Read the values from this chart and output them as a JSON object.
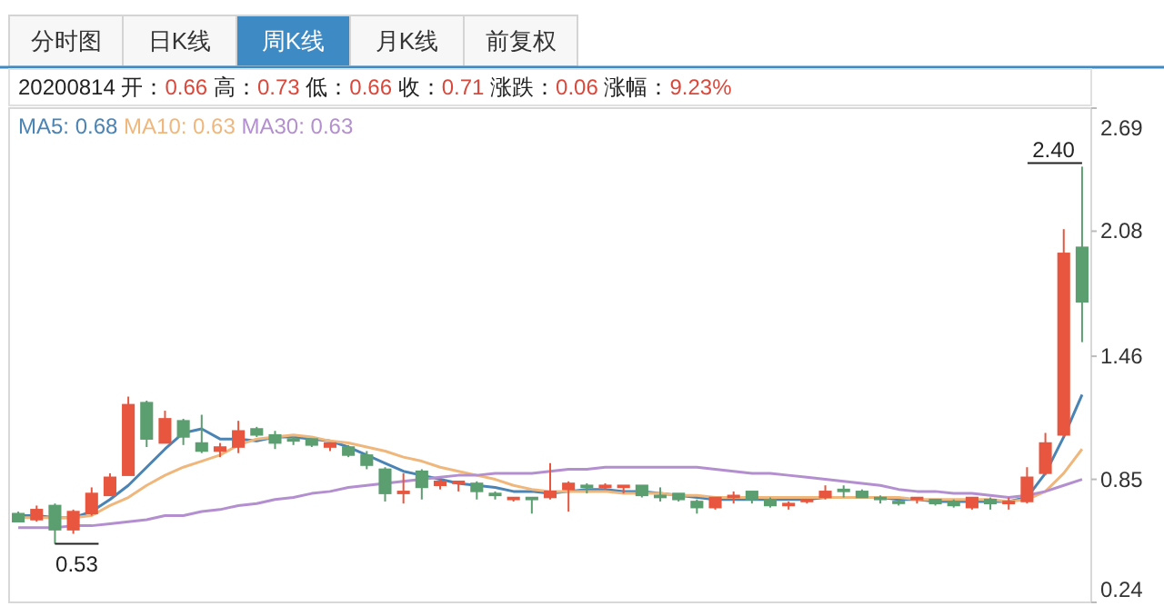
{
  "chart_data": {
    "type": "candlestick",
    "categories": [
      null,
      null,
      null,
      null,
      null,
      null,
      null,
      null,
      null,
      null,
      null,
      null,
      null,
      null,
      null,
      null,
      null,
      null,
      null,
      null,
      null,
      null,
      null,
      null,
      null,
      null,
      null,
      null,
      null,
      null,
      null,
      null,
      null,
      null,
      null,
      null,
      null,
      null,
      null,
      null,
      null,
      null,
      null,
      null,
      null,
      null,
      null,
      null,
      null,
      null,
      null,
      null,
      null,
      null,
      null,
      null,
      null,
      null,
      null
    ],
    "ohlc": [
      [
        0.68,
        0.69,
        0.64,
        0.64
      ],
      [
        0.65,
        0.72,
        0.64,
        0.7
      ],
      [
        0.72,
        0.73,
        0.53,
        0.6
      ],
      [
        0.6,
        0.7,
        0.58,
        0.69
      ],
      [
        0.68,
        0.81,
        0.67,
        0.78
      ],
      [
        0.77,
        0.88,
        0.77,
        0.86
      ],
      [
        0.87,
        1.26,
        0.87,
        1.22
      ],
      [
        1.23,
        1.24,
        1.01,
        1.05
      ],
      [
        1.03,
        1.19,
        1.03,
        1.15
      ],
      [
        1.14,
        1.15,
        1.02,
        1.06
      ],
      [
        1.03,
        1.17,
        0.98,
        0.99
      ],
      [
        0.99,
        1.03,
        0.96,
        1.01
      ],
      [
        1.01,
        1.14,
        0.98,
        1.09
      ],
      [
        1.1,
        1.11,
        1.06,
        1.07
      ],
      [
        1.07,
        1.09,
        1.0,
        1.03
      ],
      [
        1.05,
        1.06,
        1.02,
        1.04
      ],
      [
        1.05,
        1.05,
        1.01,
        1.02
      ],
      [
        1.01,
        1.03,
        0.99,
        1.03
      ],
      [
        1.01,
        1.02,
        0.96,
        0.97
      ],
      [
        0.97,
        0.99,
        0.9,
        0.92
      ],
      [
        0.9,
        0.91,
        0.74,
        0.78
      ],
      [
        0.78,
        0.88,
        0.73,
        0.79
      ],
      [
        0.89,
        0.9,
        0.75,
        0.81
      ],
      [
        0.82,
        0.85,
        0.8,
        0.84
      ],
      [
        0.83,
        0.84,
        0.79,
        0.84
      ],
      [
        0.83,
        0.84,
        0.75,
        0.79
      ],
      [
        0.78,
        0.79,
        0.75,
        0.77
      ],
      [
        0.75,
        0.76,
        0.74,
        0.76
      ],
      [
        0.76,
        0.76,
        0.68,
        0.75
      ],
      [
        0.76,
        0.93,
        0.75,
        0.79
      ],
      [
        0.8,
        0.84,
        0.69,
        0.83
      ],
      [
        0.82,
        0.83,
        0.78,
        0.81
      ],
      [
        0.81,
        0.83,
        0.8,
        0.82
      ],
      [
        0.81,
        0.82,
        0.78,
        0.82
      ],
      [
        0.82,
        0.82,
        0.76,
        0.77
      ],
      [
        0.77,
        0.81,
        0.74,
        0.76
      ],
      [
        0.78,
        0.78,
        0.74,
        0.75
      ],
      [
        0.74,
        0.75,
        0.68,
        0.71
      ],
      [
        0.71,
        0.76,
        0.7,
        0.76
      ],
      [
        0.76,
        0.79,
        0.73,
        0.77
      ],
      [
        0.79,
        0.79,
        0.73,
        0.75
      ],
      [
        0.75,
        0.76,
        0.71,
        0.72
      ],
      [
        0.72,
        0.74,
        0.7,
        0.73
      ],
      [
        0.74,
        0.75,
        0.73,
        0.75
      ],
      [
        0.76,
        0.82,
        0.75,
        0.79
      ],
      [
        0.8,
        0.82,
        0.76,
        0.79
      ],
      [
        0.79,
        0.8,
        0.76,
        0.76
      ],
      [
        0.76,
        0.77,
        0.73,
        0.75
      ],
      [
        0.74,
        0.75,
        0.72,
        0.74
      ],
      [
        0.75,
        0.76,
        0.73,
        0.76
      ],
      [
        0.75,
        0.75,
        0.72,
        0.73
      ],
      [
        0.74,
        0.75,
        0.71,
        0.72
      ],
      [
        0.71,
        0.76,
        0.7,
        0.76
      ],
      [
        0.75,
        0.76,
        0.7,
        0.73
      ],
      [
        0.73,
        0.76,
        0.7,
        0.74
      ],
      [
        0.74,
        0.91,
        0.73,
        0.86
      ],
      [
        0.88,
        1.08,
        0.87,
        1.03
      ],
      [
        1.07,
        2.09,
        1.06,
        1.97
      ],
      [
        2.0,
        2.4,
        1.53,
        1.73
      ]
    ],
    "colors": [
      "#5b9e70",
      "#e8563f",
      "#5b9e70",
      "#e8563f",
      "#e8563f",
      "#e8563f",
      "#e8563f",
      "#5b9e70",
      "#e8563f",
      "#5b9e70",
      "#5b9e70",
      "#e8563f",
      "#e8563f",
      "#5b9e70",
      "#5b9e70",
      "#5b9e70",
      "#5b9e70",
      "#e8563f",
      "#5b9e70",
      "#5b9e70",
      "#5b9e70",
      "#e8563f",
      "#5b9e70",
      "#e8563f",
      "#e8563f",
      "#5b9e70",
      "#5b9e70",
      "#e8563f",
      "#5b9e70",
      "#e8563f",
      "#e8563f",
      "#5b9e70",
      "#e8563f",
      "#e8563f",
      "#5b9e70",
      "#5b9e70",
      "#5b9e70",
      "#5b9e70",
      "#e8563f",
      "#e8563f",
      "#5b9e70",
      "#5b9e70",
      "#e8563f",
      "#e8563f",
      "#e8563f",
      "#5b9e70",
      "#5b9e70",
      "#5b9e70",
      "#5b9e70",
      "#e8563f",
      "#5b9e70",
      "#5b9e70",
      "#e8563f",
      "#5b9e70",
      "#e8563f",
      "#e8563f",
      "#e8563f",
      "#e8563f",
      "#5b9e70"
    ],
    "series": [
      {
        "name": "MA5: 0.68",
        "type": "line",
        "color": "#4a84b5",
        "values": [
          0.67,
          0.67,
          0.66,
          0.66,
          0.69,
          0.75,
          0.82,
          0.91,
          1.0,
          1.08,
          1.1,
          1.05,
          1.05,
          1.04,
          1.06,
          1.06,
          1.05,
          1.04,
          1.01,
          0.97,
          0.93,
          0.89,
          0.87,
          0.85,
          0.83,
          0.82,
          0.81,
          0.79,
          0.79,
          0.78,
          0.79,
          0.8,
          0.8,
          0.79,
          0.79,
          0.78,
          0.77,
          0.76,
          0.75,
          0.75,
          0.75,
          0.75,
          0.75,
          0.75,
          0.76,
          0.76,
          0.76,
          0.76,
          0.75,
          0.75,
          0.74,
          0.74,
          0.74,
          0.74,
          0.74,
          0.76,
          0.88,
          1.06,
          1.27
        ]
      },
      {
        "name": "MA10: 0.63",
        "type": "line",
        "color": "#f0b77c",
        "values": [
          0.66,
          0.66,
          0.66,
          0.66,
          0.67,
          0.72,
          0.76,
          0.82,
          0.87,
          0.91,
          0.94,
          0.97,
          1.02,
          1.05,
          1.06,
          1.07,
          1.06,
          1.04,
          1.03,
          1.01,
          0.99,
          0.96,
          0.94,
          0.91,
          0.89,
          0.87,
          0.85,
          0.82,
          0.8,
          0.79,
          0.79,
          0.79,
          0.79,
          0.78,
          0.78,
          0.78,
          0.77,
          0.77,
          0.76,
          0.76,
          0.76,
          0.76,
          0.76,
          0.76,
          0.76,
          0.76,
          0.76,
          0.76,
          0.76,
          0.75,
          0.75,
          0.75,
          0.75,
          0.75,
          0.74,
          0.75,
          0.79,
          0.88,
          1.0
        ]
      },
      {
        "name": "MA30: 0.63",
        "type": "line",
        "color": "#b48fcf",
        "values": [
          0.61,
          0.61,
          0.61,
          0.62,
          0.62,
          0.63,
          0.64,
          0.65,
          0.67,
          0.67,
          0.69,
          0.7,
          0.72,
          0.73,
          0.75,
          0.76,
          0.78,
          0.79,
          0.81,
          0.82,
          0.83,
          0.84,
          0.85,
          0.86,
          0.87,
          0.87,
          0.88,
          0.88,
          0.88,
          0.89,
          0.9,
          0.9,
          0.91,
          0.91,
          0.91,
          0.91,
          0.91,
          0.91,
          0.9,
          0.89,
          0.88,
          0.88,
          0.87,
          0.86,
          0.85,
          0.84,
          0.83,
          0.82,
          0.8,
          0.79,
          0.79,
          0.78,
          0.78,
          0.77,
          0.76,
          0.77,
          0.79,
          0.82,
          0.85
        ]
      }
    ],
    "ylim": [
      0.24,
      2.69
    ],
    "yticks": [
      2.69,
      2.08,
      1.46,
      0.85,
      0.24
    ],
    "legend": "top left",
    "annotations": [
      "分时图",
      "日K线",
      "周K线",
      "月K线",
      "前复权",
      "20200814 开：0.66 高：0.73 低：0.66 收：0.71 涨跌：0.06 涨幅：9.23%",
      "2.40",
      "0.53"
    ]
  }
}
